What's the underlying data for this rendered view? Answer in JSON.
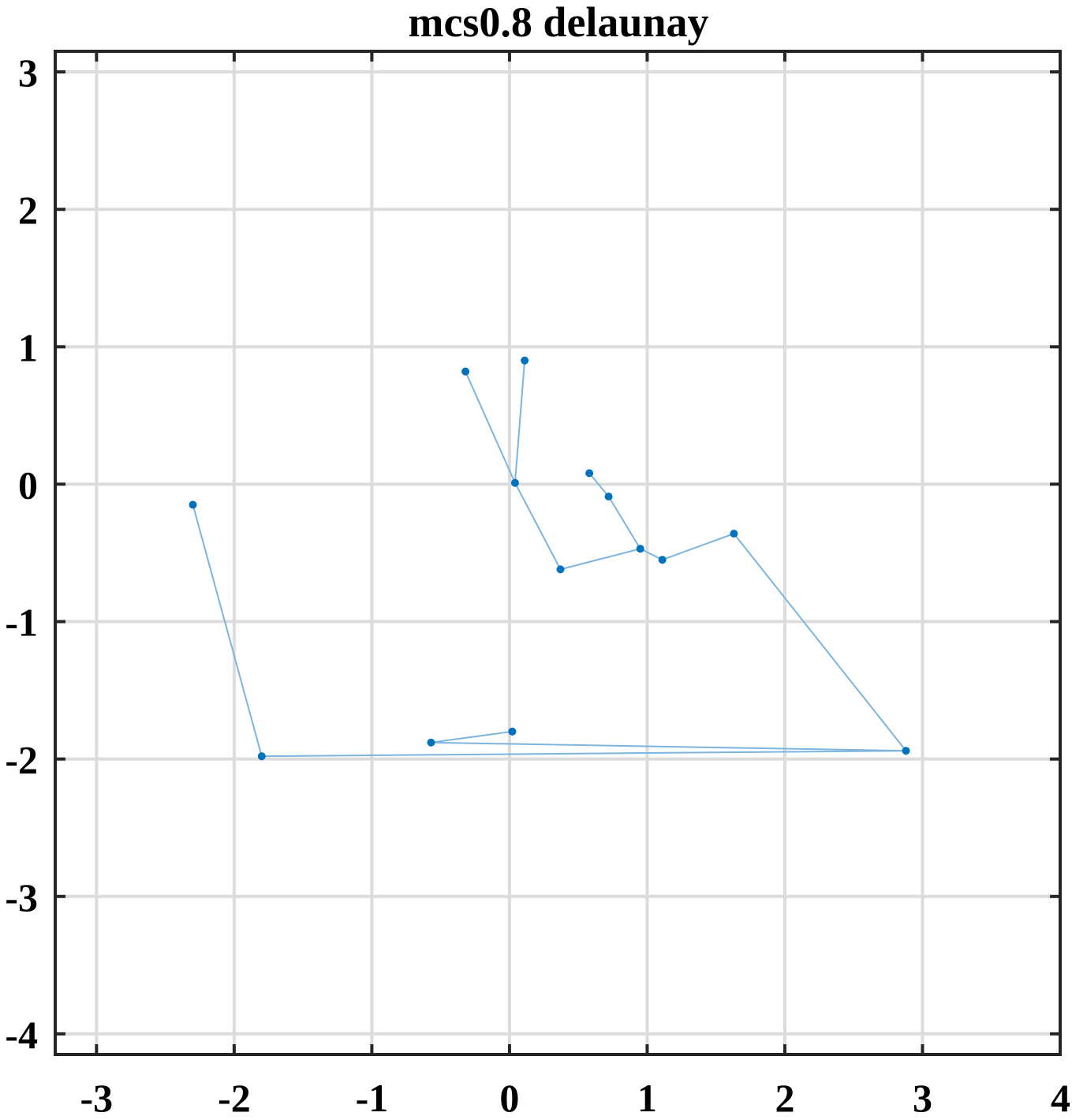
{
  "chart_data": {
    "type": "scatter",
    "title": "mcs0.8 delaunay",
    "xlabel": "",
    "ylabel": "",
    "xlim": [
      -3.3,
      4
    ],
    "ylim": [
      -4.15,
      3.15
    ],
    "x_ticks": [
      -3,
      -2,
      -1,
      0,
      1,
      2,
      3,
      4
    ],
    "y_ticks": [
      -4,
      -3,
      -2,
      -1,
      0,
      1,
      2,
      3
    ],
    "x_tick_labels": [
      "-3",
      "-2",
      "-1",
      "0",
      "1",
      "2",
      "3",
      "4"
    ],
    "y_tick_labels": [
      "-4",
      "-3",
      "-2",
      "-1",
      "0",
      "1",
      "2",
      "3"
    ],
    "grid": true,
    "points": [
      {
        "x": -2.3,
        "y": -0.15
      },
      {
        "x": -1.8,
        "y": -1.98
      },
      {
        "x": 2.88,
        "y": -1.94
      },
      {
        "x": -0.57,
        "y": -1.88
      },
      {
        "x": 0.02,
        "y": -1.8
      },
      {
        "x": 1.63,
        "y": -0.36
      },
      {
        "x": 1.11,
        "y": -0.55
      },
      {
        "x": 0.95,
        "y": -0.47
      },
      {
        "x": 0.72,
        "y": -0.09
      },
      {
        "x": 0.58,
        "y": 0.08
      },
      {
        "x": 0.37,
        "y": -0.62
      },
      {
        "x": 0.04,
        "y": 0.01
      },
      {
        "x": -0.32,
        "y": 0.82
      },
      {
        "x": 0.11,
        "y": 0.9
      }
    ],
    "edges": [
      [
        0,
        1
      ],
      [
        1,
        2
      ],
      [
        2,
        3
      ],
      [
        3,
        4
      ],
      [
        2,
        5
      ],
      [
        5,
        6
      ],
      [
        6,
        7
      ],
      [
        7,
        8
      ],
      [
        8,
        9
      ],
      [
        7,
        10
      ],
      [
        10,
        11
      ],
      [
        11,
        12
      ],
      [
        11,
        13
      ]
    ],
    "colors": {
      "marker": "#0072BD",
      "edge": "#7DB5DE",
      "grid": "#DCDCDC",
      "axes": "#262626"
    }
  }
}
